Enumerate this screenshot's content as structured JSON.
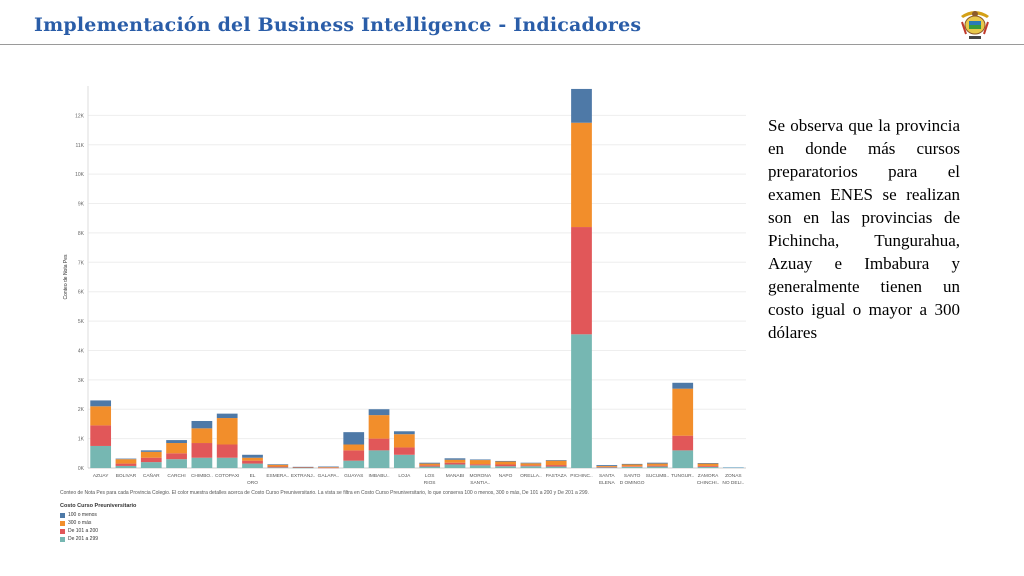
{
  "slide": {
    "title": "Implementación del Business Intelligence - Indicadores",
    "description": "Se observa que la provincia en donde más cursos preparatorios para el examen ENES se realizan son en las provincias de Pichincha, Tungurahua, Azuay e Imbabura y generalmente tienen un costo igual o mayor a 300 dólares",
    "caption": "Conteo de Nota Pes para cada Provincia Colegio. El color muestra detalles acerca de Costo Curso Preuniversitario. La vista se filtra en Costo Curso Preuniversitario, lo que conserva 100 o menos, 300 o más, De 101 a 200 y De 201 a 299."
  },
  "colors": {
    "title": "#2a5da8",
    "series": [
      "#4e79a7",
      "#f28e2b",
      "#e15759",
      "#76b7b2"
    ]
  },
  "chart_data": {
    "type": "bar",
    "stacked": true,
    "ylabel": "Conteo de Nota Pes",
    "ylim": [
      0,
      13000
    ],
    "ytick_values": [
      0,
      1000,
      2000,
      3000,
      4000,
      5000,
      6000,
      7000,
      8000,
      9000,
      10000,
      11000,
      12000
    ],
    "ytick_labels": [
      "0K",
      "1K",
      "2K",
      "3K",
      "4K",
      "5K",
      "6K",
      "7K",
      "8K",
      "9K",
      "10K",
      "11K",
      "12K"
    ],
    "grid": true,
    "categories": [
      "AZUAY",
      "BOLIVAR",
      "CAÑAR",
      "CARCHI",
      "CHIMBO..",
      "COTOPAXI",
      "EL ORO",
      "ESMERA..",
      "EXTRANJ..",
      "GALAPA..",
      "GUAYAS",
      "IMBABU..",
      "LOJA",
      "LOS RIOS",
      "MANABI",
      "MORONA SANTIA..",
      "NAPO",
      "ORELLA..",
      "PASTAZA",
      "PICHINC..",
      "SANTA ELENA",
      "SANTO D OMINGO",
      "SUCUMB..",
      "TUNGUR..",
      "ZAMORA CHINCHI..",
      "ZONAS NO DELI.."
    ],
    "legend": {
      "title": "Costo Curso Preuniversitario",
      "position": "bottom-left"
    },
    "series": [
      {
        "name": "100 o menos",
        "values": [
          200,
          20,
          50,
          100,
          250,
          150,
          100,
          20,
          10,
          20,
          420,
          200,
          100,
          30,
          50,
          20,
          20,
          20,
          20,
          1150,
          30,
          20,
          30,
          200,
          20,
          0
        ]
      },
      {
        "name": "300 o más",
        "values": [
          650,
          150,
          200,
          350,
          500,
          900,
          100,
          60,
          10,
          20,
          200,
          800,
          450,
          60,
          100,
          140,
          100,
          70,
          150,
          3550,
          30,
          60,
          70,
          1600,
          80,
          0
        ]
      },
      {
        "name": "De 101 a 200",
        "values": [
          700,
          80,
          150,
          200,
          500,
          450,
          100,
          30,
          10,
          10,
          350,
          400,
          250,
          40,
          60,
          40,
          60,
          30,
          50,
          3650,
          20,
          20,
          30,
          500,
          30,
          0
        ]
      },
      {
        "name": "De 201 a 299",
        "values": [
          750,
          70,
          200,
          300,
          350,
          350,
          150,
          20,
          10,
          0,
          250,
          600,
          450,
          50,
          120,
          90,
          60,
          60,
          50,
          4550,
          20,
          40,
          50,
          600,
          40,
          0
        ]
      }
    ]
  }
}
